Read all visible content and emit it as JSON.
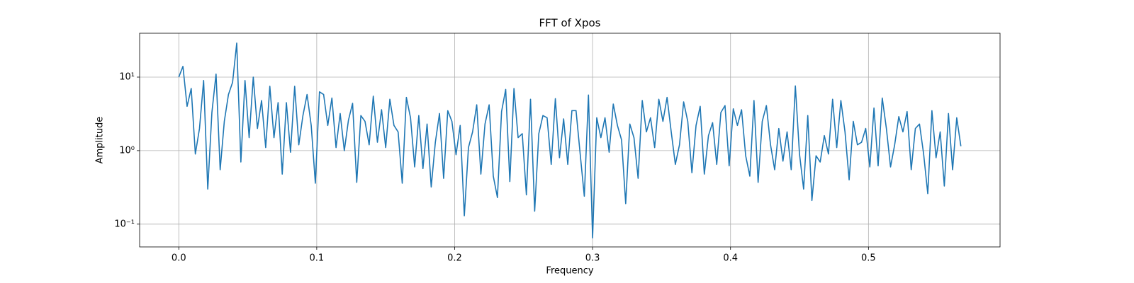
{
  "chart_data": {
    "type": "line",
    "title": "FFT of Xpos",
    "xlabel": "Frequency",
    "ylabel": "Amplitude",
    "x": [
      0,
      0.003,
      0.006,
      0.009,
      0.012,
      0.015,
      0.018,
      0.021,
      0.024,
      0.027,
      0.03,
      0.033,
      0.036,
      0.039,
      0.042,
      0.045,
      0.048,
      0.051,
      0.054,
      0.057,
      0.06,
      0.063,
      0.066,
      0.069,
      0.072,
      0.075,
      0.078,
      0.081,
      0.084,
      0.087,
      0.09,
      0.093,
      0.096,
      0.099,
      0.102,
      0.105,
      0.108,
      0.111,
      0.114,
      0.117,
      0.12,
      0.123,
      0.126,
      0.129,
      0.132,
      0.135,
      0.138,
      0.141,
      0.144,
      0.147,
      0.15,
      0.153,
      0.156,
      0.159,
      0.162,
      0.165,
      0.168,
      0.171,
      0.174,
      0.177,
      0.18,
      0.183,
      0.186,
      0.189,
      0.192,
      0.195,
      0.198,
      0.201,
      0.204,
      0.207,
      0.21,
      0.213,
      0.216,
      0.219,
      0.222,
      0.225,
      0.228,
      0.231,
      0.234,
      0.237,
      0.24,
      0.243,
      0.246,
      0.249,
      0.252,
      0.255,
      0.258,
      0.261,
      0.264,
      0.267,
      0.27,
      0.273,
      0.276,
      0.279,
      0.282,
      0.285,
      0.288,
      0.291,
      0.294,
      0.297,
      0.3,
      0.303,
      0.306,
      0.309,
      0.312,
      0.315,
      0.318,
      0.321,
      0.324,
      0.327,
      0.33,
      0.333,
      0.336,
      0.339,
      0.342,
      0.345,
      0.348,
      0.351,
      0.354,
      0.357,
      0.36,
      0.363,
      0.366,
      0.369,
      0.372,
      0.375,
      0.378,
      0.381,
      0.384,
      0.387,
      0.39,
      0.393,
      0.396,
      0.399,
      0.402,
      0.405,
      0.408,
      0.411,
      0.414,
      0.417,
      0.42,
      0.423,
      0.426,
      0.429,
      0.432,
      0.435,
      0.438,
      0.441,
      0.444,
      0.447,
      0.45,
      0.453,
      0.456,
      0.459,
      0.462,
      0.465,
      0.468,
      0.471,
      0.474,
      0.477,
      0.48,
      0.483,
      0.486,
      0.489,
      0.492,
      0.495,
      0.498,
      0.501,
      0.504,
      0.507,
      0.51,
      0.513,
      0.516,
      0.519,
      0.522,
      0.525,
      0.528,
      0.531,
      0.534,
      0.537,
      0.54,
      0.543,
      0.546,
      0.549,
      0.552,
      0.555,
      0.558,
      0.561,
      0.564,
      0.567
    ],
    "values": [
      10,
      14,
      4,
      7,
      0.9,
      2,
      9,
      0.3,
      3.3,
      11,
      0.55,
      2.5,
      5.8,
      8.5,
      29,
      0.7,
      9,
      1.5,
      10,
      2,
      4.8,
      1.1,
      7.5,
      1.5,
      4.5,
      0.48,
      4.5,
      0.95,
      7.5,
      1.2,
      3,
      5.8,
      2.2,
      0.36,
      6.3,
      5.8,
      2.2,
      5.2,
      1.1,
      3.2,
      1,
      2.6,
      4.4,
      0.37,
      3,
      2.5,
      1.2,
      5.5,
      1.3,
      3.6,
      1.1,
      5,
      2.2,
      1.8,
      0.36,
      5.3,
      2.8,
      0.6,
      3,
      0.57,
      2.3,
      0.32,
      1.3,
      3.2,
      0.42,
      3.5,
      2.5,
      0.88,
      2.2,
      0.13,
      1.1,
      1.8,
      4.2,
      0.48,
      2.3,
      4.2,
      0.45,
      0.23,
      3.4,
      6.8,
      0.38,
      7,
      1.5,
      1.7,
      0.25,
      5,
      0.15,
      1.7,
      3,
      2.8,
      0.65,
      5.1,
      0.8,
      2.7,
      0.65,
      3.5,
      3.5,
      0.9,
      0.24,
      5.7,
      0.065,
      2.8,
      1.5,
      2.8,
      0.95,
      4.3,
      2.2,
      1.4,
      0.19,
      2.3,
      1.5,
      0.42,
      4.8,
      1.8,
      2.8,
      1.1,
      5,
      2.5,
      5.3,
      1.8,
      0.65,
      1.2,
      4.6,
      2.5,
      0.5,
      2.2,
      4,
      0.48,
      1.6,
      2.4,
      0.65,
      3.3,
      4.1,
      0.62,
      3.7,
      2.2,
      3.6,
      0.85,
      0.45,
      4.8,
      0.37,
      2.5,
      4.1,
      1.2,
      0.55,
      2,
      0.72,
      1.8,
      0.55,
      7.6,
      0.9,
      0.3,
      3,
      0.21,
      0.85,
      0.7,
      1.6,
      0.9,
      5,
      1.1,
      4.8,
      1.8,
      0.4,
      2.5,
      1.2,
      1.3,
      2,
      0.6,
      3.8,
      0.62,
      5.2,
      2,
      0.6,
      1.2,
      2.9,
      1.8,
      3.4,
      0.55,
      2,
      2.3,
      0.9,
      0.26,
      3.5,
      0.8,
      1.8,
      0.33,
      3.2,
      0.55,
      2.8,
      1.15
    ],
    "color": "#1f77b4",
    "xlim": [
      -0.0284,
      0.5954
    ],
    "xticks": [
      {
        "value": 0,
        "label": "0.0"
      },
      0.1,
      0.2,
      0.3,
      0.4,
      0.5
    ],
    "ylim": [
      0.049,
      39.5
    ],
    "yscale": "log",
    "yticks": [
      {
        "value": 0.1,
        "label": "10⁻¹"
      },
      {
        "value": 1,
        "label": "10⁰"
      },
      {
        "value": 10,
        "label": "10¹"
      }
    ],
    "grid": true
  }
}
